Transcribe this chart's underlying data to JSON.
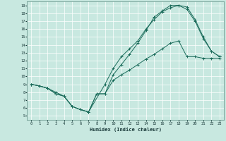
{
  "xlabel": "Humidex (Indice chaleur)",
  "xlim": [
    -0.5,
    23.5
  ],
  "ylim": [
    4.5,
    19.5
  ],
  "xticks": [
    0,
    1,
    2,
    3,
    4,
    5,
    6,
    7,
    8,
    9,
    10,
    11,
    12,
    13,
    14,
    15,
    16,
    17,
    18,
    19,
    20,
    21,
    22,
    23
  ],
  "yticks": [
    5,
    6,
    7,
    8,
    9,
    10,
    11,
    12,
    13,
    14,
    15,
    16,
    17,
    18,
    19
  ],
  "bg_color": "#c8e8e0",
  "line_color": "#1a6b5a",
  "line1_x": [
    0,
    1,
    2,
    3,
    4,
    5,
    6,
    7,
    9,
    10,
    11,
    12,
    13,
    14,
    15,
    16,
    17,
    18,
    19,
    20,
    21,
    22,
    23
  ],
  "line1_y": [
    9.0,
    8.8,
    8.5,
    8.0,
    7.5,
    6.2,
    5.8,
    5.5,
    9.0,
    11.0,
    12.5,
    13.5,
    14.5,
    16.0,
    17.2,
    18.2,
    18.7,
    19.0,
    18.8,
    17.2,
    15.0,
    13.2,
    12.5
  ],
  "line2_x": [
    0,
    1,
    2,
    3,
    4,
    5,
    6,
    7,
    8,
    9,
    10,
    11,
    12,
    13,
    14,
    15,
    16,
    17,
    18,
    19,
    20,
    21,
    22,
    23
  ],
  "line2_y": [
    9.0,
    8.8,
    8.5,
    7.8,
    7.5,
    6.2,
    5.8,
    5.5,
    7.8,
    7.8,
    10.2,
    11.5,
    12.8,
    14.2,
    15.8,
    17.5,
    18.3,
    19.0,
    19.0,
    18.5,
    17.0,
    14.8,
    13.2,
    12.5
  ],
  "line3_x": [
    0,
    1,
    2,
    3,
    4,
    5,
    6,
    7,
    8,
    9,
    10,
    11,
    12,
    13,
    14,
    15,
    16,
    17,
    18,
    19,
    20,
    21,
    22,
    23
  ],
  "line3_y": [
    9.0,
    8.8,
    8.5,
    7.8,
    7.5,
    6.2,
    5.8,
    5.5,
    7.8,
    7.8,
    9.5,
    10.2,
    10.8,
    11.5,
    12.2,
    12.8,
    13.5,
    14.2,
    14.5,
    12.5,
    12.5,
    12.3,
    12.3,
    12.3
  ]
}
